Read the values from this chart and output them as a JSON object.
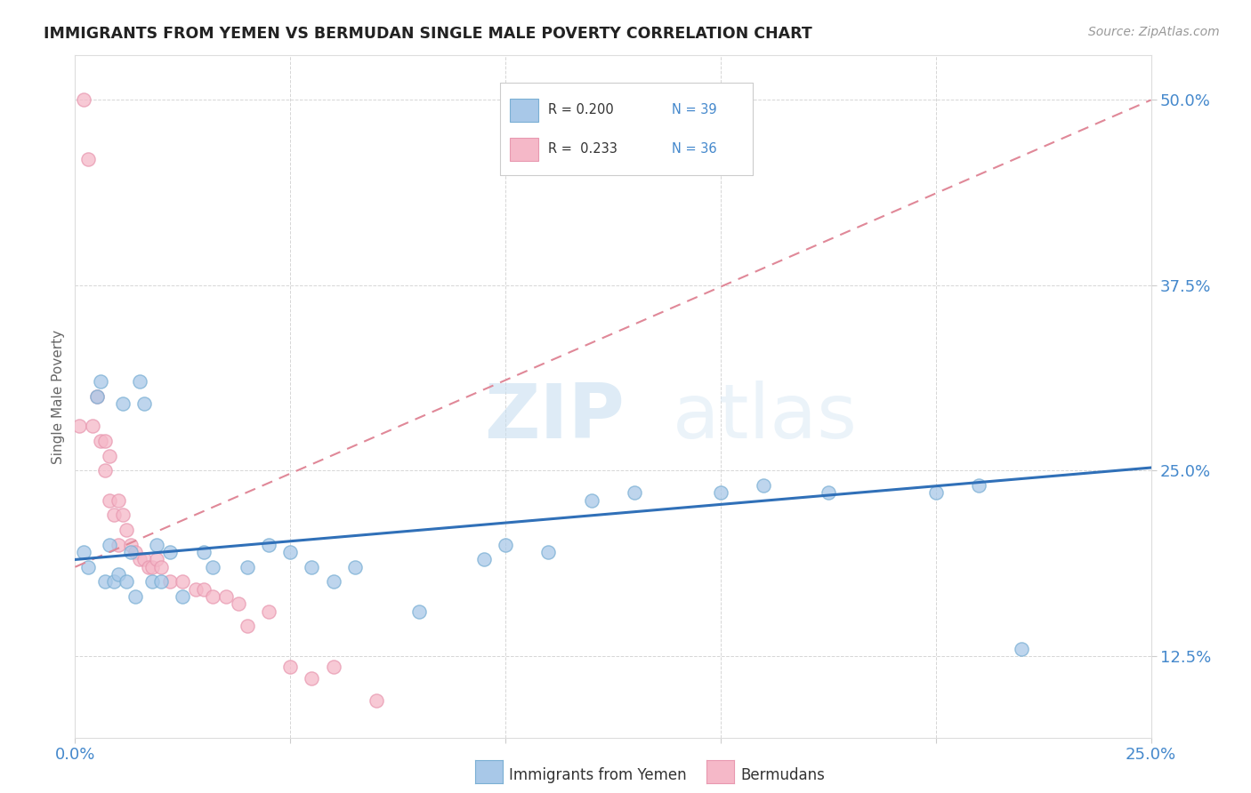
{
  "title": "IMMIGRANTS FROM YEMEN VS BERMUDAN SINGLE MALE POVERTY CORRELATION CHART",
  "source": "Source: ZipAtlas.com",
  "ylabel": "Single Male Poverty",
  "xlim": [
    0.0,
    0.25
  ],
  "ylim": [
    0.07,
    0.53
  ],
  "xticks": [
    0.0,
    0.05,
    0.1,
    0.15,
    0.2,
    0.25
  ],
  "xticklabels": [
    "0.0%",
    "",
    "",
    "",
    "",
    "25.0%"
  ],
  "ytick_positions": [
    0.125,
    0.25,
    0.375,
    0.5
  ],
  "ytick_labels": [
    "12.5%",
    "25.0%",
    "37.5%",
    "50.0%"
  ],
  "watermark_zip": "ZIP",
  "watermark_atlas": "atlas",
  "legend_R1": "R = 0.200",
  "legend_N1": "N = 39",
  "legend_R2": "R =  0.233",
  "legend_N2": "N = 36",
  "blue_color": "#a8c8e8",
  "pink_color": "#f5b8c8",
  "blue_edge_color": "#7aafd4",
  "pink_edge_color": "#e898b0",
  "blue_line_color": "#3070b8",
  "pink_line_color": "#e08898",
  "title_color": "#222222",
  "axis_label_color": "#4488cc",
  "legend_text_color": "#4488cc",
  "grid_color": "#cccccc",
  "blue_scatter_x": [
    0.002,
    0.003,
    0.005,
    0.006,
    0.007,
    0.008,
    0.009,
    0.01,
    0.011,
    0.012,
    0.013,
    0.014,
    0.015,
    0.016,
    0.018,
    0.019,
    0.02,
    0.022,
    0.025,
    0.03,
    0.032,
    0.04,
    0.045,
    0.05,
    0.055,
    0.06,
    0.065,
    0.08,
    0.095,
    0.1,
    0.11,
    0.12,
    0.13,
    0.15,
    0.16,
    0.175,
    0.2,
    0.21,
    0.22
  ],
  "blue_scatter_y": [
    0.195,
    0.185,
    0.3,
    0.31,
    0.175,
    0.2,
    0.175,
    0.18,
    0.295,
    0.175,
    0.195,
    0.165,
    0.31,
    0.295,
    0.175,
    0.2,
    0.175,
    0.195,
    0.165,
    0.195,
    0.185,
    0.185,
    0.2,
    0.195,
    0.185,
    0.175,
    0.185,
    0.155,
    0.19,
    0.2,
    0.195,
    0.23,
    0.235,
    0.235,
    0.24,
    0.235,
    0.235,
    0.24,
    0.13
  ],
  "pink_scatter_x": [
    0.001,
    0.002,
    0.003,
    0.004,
    0.005,
    0.006,
    0.007,
    0.007,
    0.008,
    0.008,
    0.009,
    0.01,
    0.01,
    0.011,
    0.012,
    0.013,
    0.014,
    0.015,
    0.016,
    0.017,
    0.018,
    0.019,
    0.02,
    0.022,
    0.025,
    0.028,
    0.03,
    0.032,
    0.035,
    0.038,
    0.04,
    0.045,
    0.05,
    0.055,
    0.06,
    0.07
  ],
  "pink_scatter_y": [
    0.28,
    0.5,
    0.46,
    0.28,
    0.3,
    0.27,
    0.25,
    0.27,
    0.26,
    0.23,
    0.22,
    0.23,
    0.2,
    0.22,
    0.21,
    0.2,
    0.195,
    0.19,
    0.19,
    0.185,
    0.185,
    0.19,
    0.185,
    0.175,
    0.175,
    0.17,
    0.17,
    0.165,
    0.165,
    0.16,
    0.145,
    0.155,
    0.118,
    0.11,
    0.118,
    0.095
  ],
  "blue_trend_x": [
    0.0,
    0.25
  ],
  "blue_trend_y": [
    0.19,
    0.252
  ],
  "pink_trend_x": [
    0.0,
    0.25
  ],
  "pink_trend_y": [
    0.185,
    0.5
  ]
}
